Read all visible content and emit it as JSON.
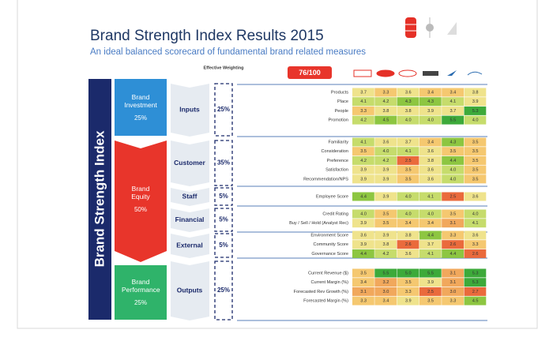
{
  "title": "Brand Strength Index Results 2015",
  "subtitle": "An ideal balanced scorecard of fundamental brand related measures",
  "index_label": "Brand Strength Index",
  "weighting_label": "Effective Weighting",
  "score": "76/100",
  "sections": [
    {
      "name": "Brand Investment",
      "weight": "25%"
    },
    {
      "name": "Brand Equity",
      "weight": "50%"
    },
    {
      "name": "Brand Performance",
      "weight": "25%"
    }
  ],
  "groups": [
    {
      "name": "Inputs",
      "weight": "25%",
      "rows": [
        {
          "label": "Products",
          "values": [
            "3.7",
            "3.3",
            "3.6",
            "3.4",
            "3.4",
            "3.8"
          ]
        },
        {
          "label": "Place",
          "values": [
            "4.1",
            "4.2",
            "4.3",
            "4.3",
            "4.1",
            "3.9"
          ]
        },
        {
          "label": "People",
          "values": [
            "3.3",
            "3.8",
            "3.8",
            "3.9",
            "3.7",
            "5.3"
          ]
        },
        {
          "label": "Promotion",
          "values": [
            "4.2",
            "4.5",
            "4.0",
            "4.0",
            "5.5",
            "4.0"
          ]
        }
      ]
    },
    {
      "name": "Customer",
      "weight": "35%",
      "rows": [
        {
          "label": "Familiarity",
          "values": [
            "4.1",
            "3.6",
            "3.7",
            "3.4",
            "4.3",
            "3.5"
          ]
        },
        {
          "label": "Consideration",
          "values": [
            "3.5",
            "4.0",
            "4.1",
            "3.6",
            "3.5",
            "3.5"
          ]
        },
        {
          "label": "Preference",
          "values": [
            "4.2",
            "4.2",
            "2.5",
            "3.8",
            "4.4",
            "3.5"
          ]
        },
        {
          "label": "Satisfaction",
          "values": [
            "3.9",
            "3.9",
            "3.5",
            "3.6",
            "4.0",
            "3.5"
          ]
        },
        {
          "label": "Recommendation/NPS",
          "values": [
            "3.9",
            "3.9",
            "3.5",
            "3.6",
            "4.0",
            "3.5"
          ]
        }
      ]
    },
    {
      "name": "Staff",
      "weight": "5%",
      "rows": [
        {
          "label": "Employee Score",
          "values": [
            "4.4",
            "3.9",
            "4.0",
            "4.1",
            "2.5",
            "3.6"
          ]
        }
      ]
    },
    {
      "name": "Financial",
      "weight": "5%",
      "rows": [
        {
          "label": "Credit Rating",
          "values": [
            "4.0",
            "3.5",
            "4.0",
            "4.0",
            "3.5",
            "4.0"
          ]
        },
        {
          "label": "Buy / Sell / Hold (Analyst Rec)",
          "values": [
            "3.9",
            "3.5",
            "3.4",
            "3.4",
            "3.1",
            "4.1"
          ]
        }
      ]
    },
    {
      "name": "External",
      "weight": "5%",
      "rows": [
        {
          "label": "Environment Score",
          "values": [
            "3.6",
            "3.9",
            "3.8",
            "4.4",
            "3.3",
            "3.6"
          ]
        },
        {
          "label": "Community Score",
          "values": [
            "3.9",
            "3.8",
            "2.6",
            "3.7",
            "2.6",
            "3.3"
          ]
        },
        {
          "label": "Governance Score",
          "values": [
            "4.4",
            "4.2",
            "3.6",
            "4.1",
            "4.4",
            "2.6"
          ]
        }
      ]
    },
    {
      "name": "Outputs",
      "weight": "25%",
      "rows": [
        {
          "label": "Current Revenue ($)",
          "values": [
            "3.5",
            "5.5",
            "5.0",
            "5.5",
            "3.1",
            "5.3"
          ]
        },
        {
          "label": "Current Margin (%)",
          "values": [
            "3.4",
            "3.2",
            "3.5",
            "3.9",
            "3.1",
            "5.3"
          ]
        },
        {
          "label": "Forecasted Rev Growth (%)",
          "values": [
            "3.1",
            "3.0",
            "3.3",
            "2.5",
            "3.0",
            "2.7"
          ]
        },
        {
          "label": "Forecasted Margin (%)",
          "values": [
            "3.3",
            "3.4",
            "3.9",
            "3.5",
            "3.3",
            "4.5"
          ]
        }
      ]
    }
  ]
}
